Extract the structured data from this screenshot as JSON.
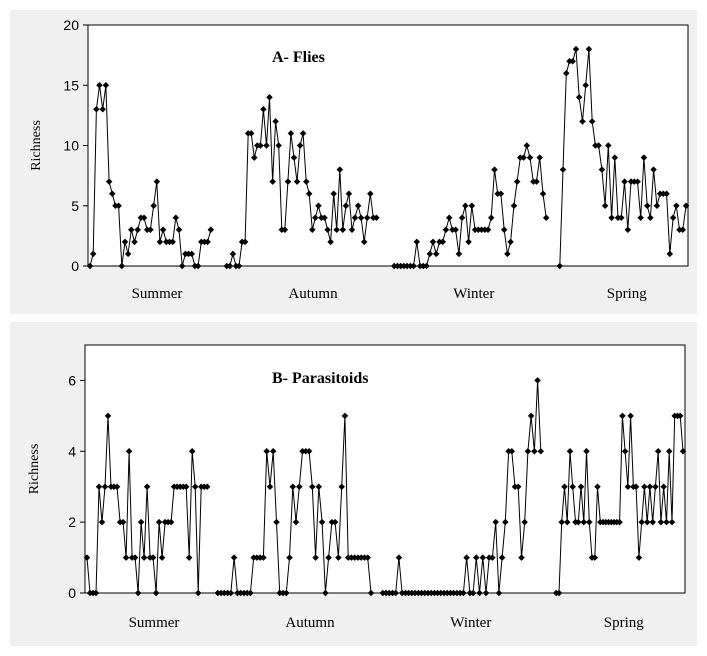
{
  "chart_data": [
    {
      "type": "line",
      "title": "A- Flies",
      "ylabel": "Richness",
      "xlabel": "",
      "ylim": [
        0,
        20
      ],
      "yticks": [
        "0",
        "5",
        "10",
        "15",
        "20"
      ],
      "season_labels": [
        "Summer",
        "Autumn",
        "Winter",
        "Spring"
      ],
      "grid": false,
      "series": [
        {
          "segments": [
            [
              0,
              1,
              13,
              15,
              13,
              15,
              7,
              6,
              5,
              5,
              0,
              2,
              1,
              3,
              2,
              3,
              4,
              4,
              3,
              3,
              5,
              7,
              2,
              3,
              2,
              2,
              2,
              4,
              3,
              0,
              1,
              1,
              1,
              0,
              0,
              2,
              2,
              2,
              3
            ],
            [
              0,
              0,
              1,
              0,
              0,
              2,
              2,
              11,
              11,
              9,
              10,
              10,
              13,
              10,
              14,
              7,
              12,
              10,
              3,
              3,
              7,
              11,
              9,
              7,
              10,
              11,
              7,
              6,
              3,
              4,
              5,
              4,
              4,
              3,
              2,
              6,
              3,
              8,
              3,
              5,
              6,
              3,
              4,
              5,
              4,
              2,
              4,
              6,
              4,
              4
            ],
            [
              0,
              0,
              0,
              0,
              0,
              0,
              0,
              2,
              0,
              0,
              0,
              1,
              2,
              1,
              2,
              2,
              3,
              4,
              3,
              3,
              1,
              4,
              5,
              2,
              5,
              3,
              3,
              3,
              3,
              3,
              4,
              8,
              6,
              6,
              3,
              1,
              2,
              5,
              7,
              9,
              9,
              10,
              9,
              7,
              7,
              9,
              6,
              4
            ],
            [
              0,
              8,
              16,
              17,
              17,
              18,
              14,
              12,
              15,
              18,
              12,
              10,
              10,
              8,
              5,
              10,
              4,
              9,
              4,
              4,
              7,
              3,
              7,
              7,
              7,
              4,
              9,
              5,
              4,
              8,
              5,
              6,
              6,
              6,
              1,
              4,
              5,
              3,
              3,
              5
            ]
          ]
        }
      ]
    },
    {
      "type": "line",
      "title": "B- Parasitoids",
      "ylabel": "Richness",
      "xlabel": "",
      "ylim": [
        0,
        7
      ],
      "yticks": [
        "0",
        "2",
        "4",
        "6"
      ],
      "season_labels": [
        "Summer",
        "Autumn",
        "Winter",
        "Spring"
      ],
      "grid": false,
      "series": [
        {
          "segments": [
            [
              1,
              0,
              0,
              0,
              3,
              2,
              3,
              5,
              3,
              3,
              3,
              2,
              2,
              1,
              4,
              1,
              1,
              0,
              2,
              1,
              3,
              1,
              1,
              0,
              2,
              1,
              2,
              2,
              2,
              3,
              3,
              3,
              3,
              3,
              1,
              4,
              3,
              0,
              3,
              3,
              3
            ],
            [
              0,
              0,
              0,
              0,
              0,
              1,
              0,
              0,
              0,
              0,
              0,
              1,
              1,
              1,
              1,
              4,
              3,
              4,
              2,
              0,
              0,
              0,
              1,
              3,
              2,
              3,
              4,
              4,
              4,
              3,
              1,
              3,
              2,
              0,
              1,
              2,
              2,
              1,
              3,
              5,
              1,
              1,
              1,
              1,
              1,
              1,
              1,
              0
            ],
            [
              0,
              0,
              0,
              0,
              0,
              1,
              0,
              0,
              0,
              0,
              0,
              0,
              0,
              0,
              0,
              0,
              0,
              0,
              0,
              0,
              0,
              0,
              0,
              0,
              0,
              0,
              1,
              0,
              0,
              1,
              0,
              1,
              0,
              1,
              1,
              2,
              0,
              1,
              2,
              4,
              4,
              3,
              3,
              1,
              2,
              4,
              5,
              4,
              6,
              4
            ],
            [
              0,
              0,
              2,
              3,
              2,
              4,
              3,
              2,
              2,
              3,
              2,
              4,
              2,
              1,
              1,
              3,
              2,
              2,
              2,
              2,
              2,
              2,
              2,
              2,
              5,
              4,
              3,
              5,
              3,
              3,
              1,
              2,
              3,
              2,
              3,
              2,
              3,
              4,
              2,
              3,
              2,
              4,
              2,
              5,
              5,
              5,
              4
            ]
          ]
        }
      ]
    }
  ]
}
